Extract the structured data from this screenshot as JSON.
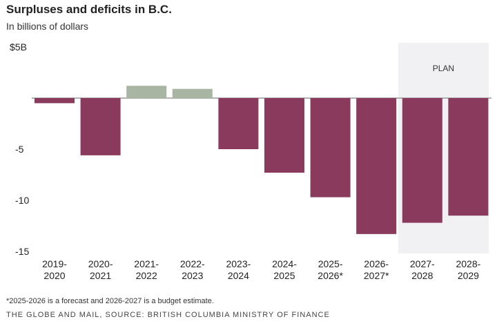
{
  "chart_data": {
    "type": "bar",
    "title": "Surpluses and deficits in B.C.",
    "subtitle": "In billions of dollars",
    "categories": [
      "2019-\n2020",
      "2020-\n2021",
      "2021-\n2022",
      "2022-\n2023",
      "2023-\n2024",
      "2024-\n2025",
      "2025-\n2026*",
      "2026-\n2027*",
      "2027-\n2028",
      "2028-\n2029"
    ],
    "values": [
      -0.5,
      -5.6,
      1.2,
      0.9,
      -5.0,
      -7.3,
      -9.7,
      -13.3,
      -12.2,
      -11.5
    ],
    "ylim": [
      -15,
      5
    ],
    "yticks": [
      {
        "v": 5,
        "label": "$5B"
      },
      {
        "v": -5,
        "label": "-5"
      },
      {
        "v": -10,
        "label": "-10"
      },
      {
        "v": -15,
        "label": "-15"
      }
    ],
    "annotation": {
      "label": "PLAN",
      "from_index": 8,
      "to_index": 9
    },
    "colors": {
      "deficit": "#8a3a5c",
      "surplus": "#a8b5a2",
      "plan": "#f1f1f3",
      "axis": "#999999"
    },
    "footnote": "*2025-2026 is a forecast and 2026-2027 is a budget estimate.",
    "source": "THE GLOBE AND MAIL, SOURCE: BRITISH COLUMBIA MINISTRY OF FINANCE"
  }
}
